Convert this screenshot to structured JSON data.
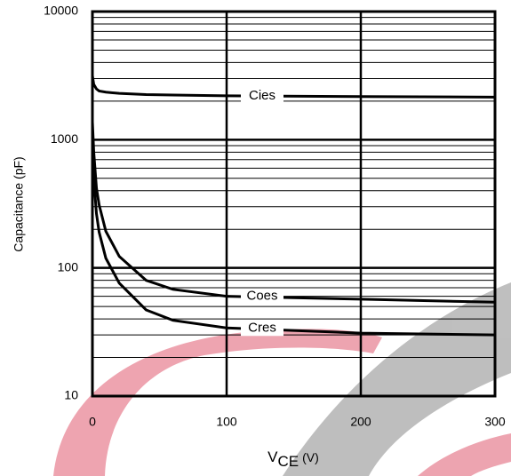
{
  "chart_data": {
    "type": "line",
    "x_label": [
      "V",
      "CE",
      "(V)"
    ],
    "y_label": "Capacitance (pF)",
    "log_y": true,
    "grid": true,
    "xlim": [
      0,
      300
    ],
    "xticks": [
      0,
      100,
      200,
      300
    ],
    "ylim": [
      10,
      10000
    ],
    "yticks": [
      10,
      100,
      1000,
      10000
    ],
    "minor_grid": [
      20,
      30,
      40,
      50,
      60,
      70,
      80,
      90,
      200,
      300,
      400,
      500,
      600,
      700,
      800,
      900,
      2000,
      3000,
      4000,
      5000,
      6000,
      7000,
      8000,
      9000
    ],
    "x": [
      0,
      1,
      3,
      5,
      10,
      20,
      40,
      60,
      100,
      200,
      300
    ],
    "series": [
      {
        "name": "Cies",
        "color": "#000000",
        "values": [
          3160,
          2700,
          2490,
          2400,
          2350,
          2300,
          2250,
          2230,
          2200,
          2170,
          2150
        ]
      },
      {
        "name": "Coes",
        "color": "#000000",
        "values": [
          1380,
          800,
          420,
          310,
          193,
          123,
          80,
          68,
          60,
          57,
          54
        ]
      },
      {
        "name": "Cres",
        "color": "#000000",
        "values": [
          1000,
          500,
          265,
          190,
          119,
          76,
          47,
          39,
          34,
          31,
          30
        ]
      }
    ]
  }
}
